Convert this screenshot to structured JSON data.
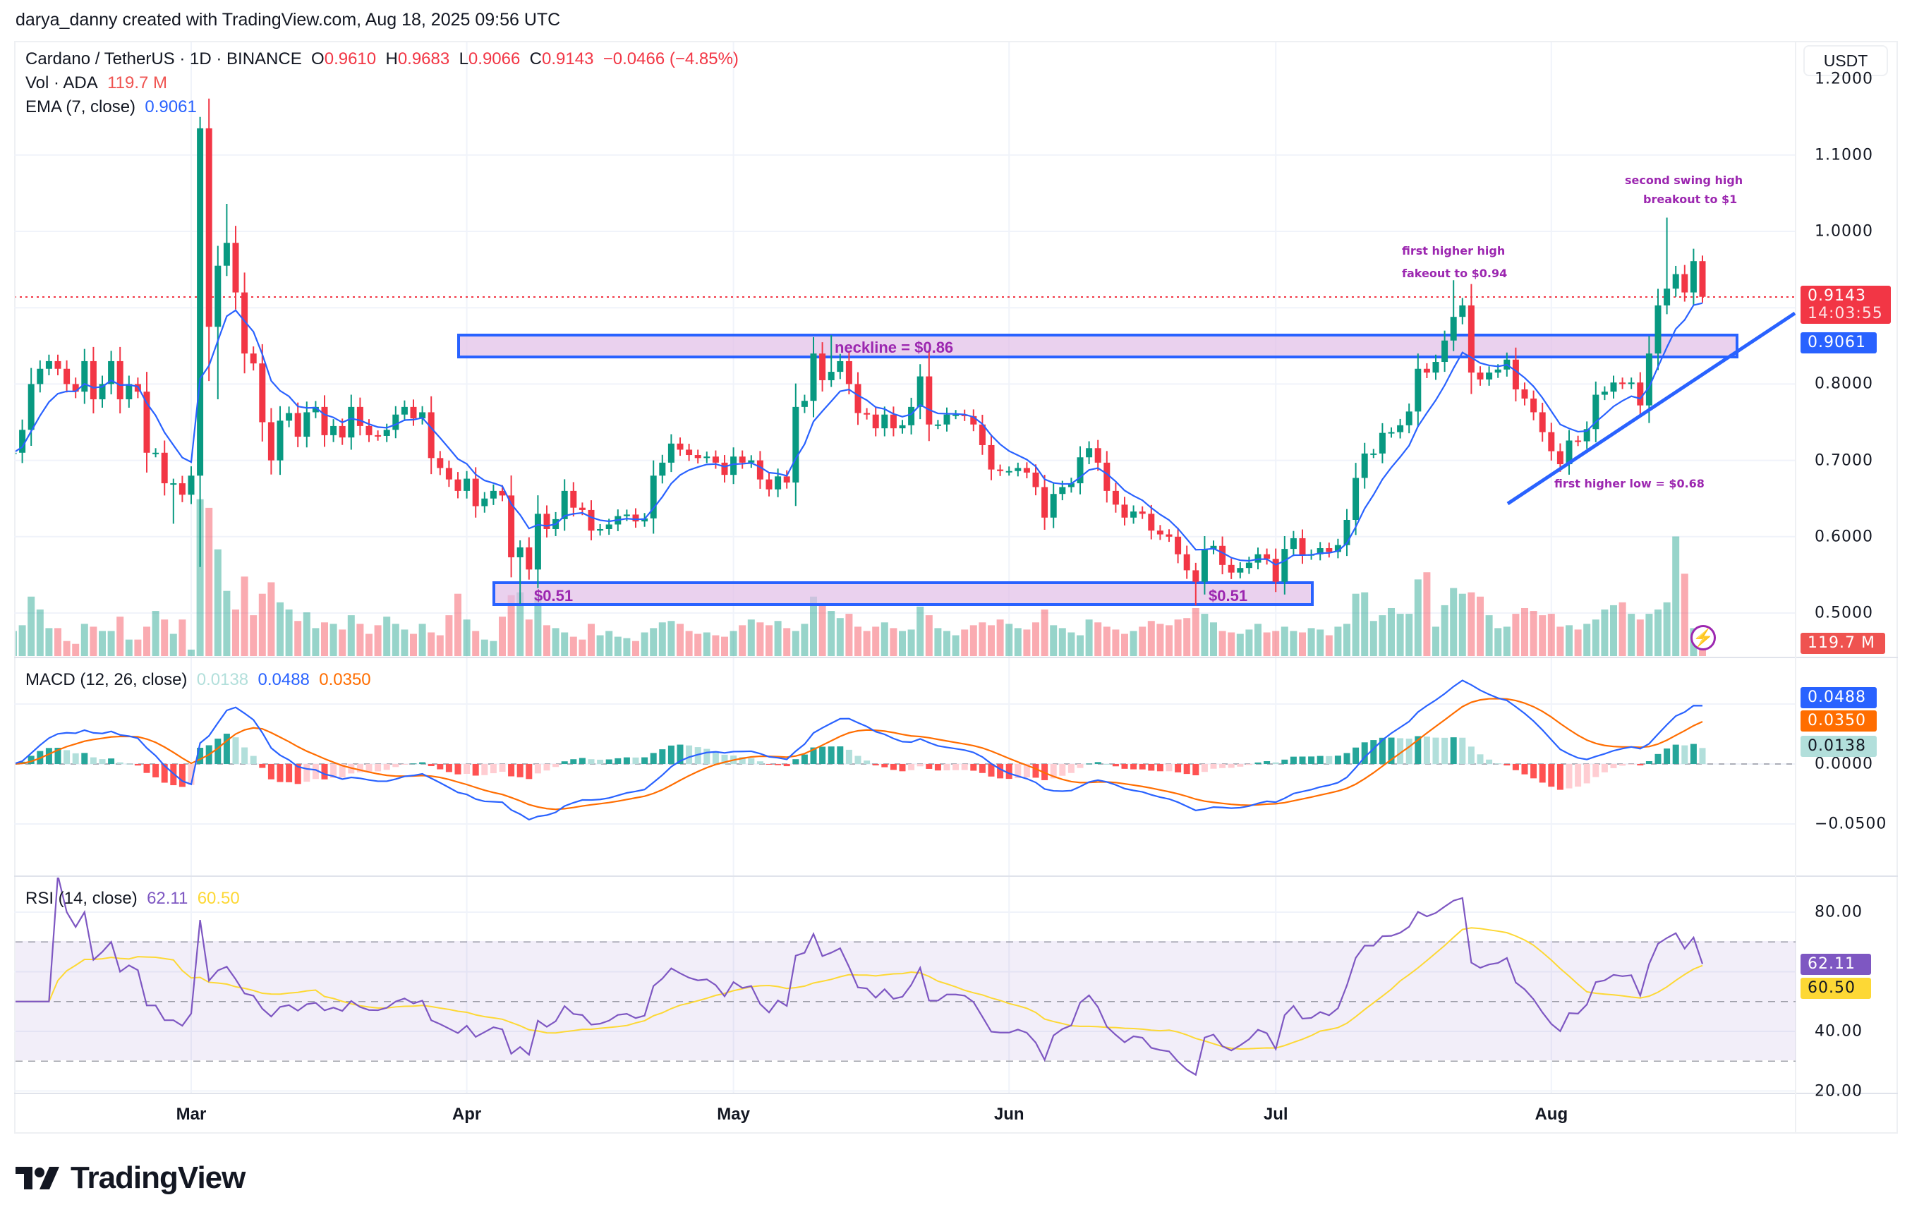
{
  "credit": "darya_danny created with TradingView.com, Aug 18, 2025 09:56 UTC",
  "legend": {
    "symbol": "Cardano / TetherUS · 1D · BINANCE",
    "o_label": "O",
    "o": "0.9610",
    "h_label": "H",
    "h": "0.9683",
    "l_label": "L",
    "l": "0.9066",
    "c_label": "C",
    "c": "0.9143",
    "change": "−0.0466 (−4.85%)",
    "vol_title": "Vol · ADA",
    "vol_value": "119.7 M",
    "ema_title": "EMA (7, close)",
    "ema_value": "0.9061",
    "macd_title": "MACD (12, 26, close)",
    "macd_hist": "0.0138",
    "macd_line": "0.0488",
    "macd_signal": "0.0350",
    "rsi_title": "RSI (14, close)",
    "rsi_value": "62.11",
    "rsi_ma": "60.50"
  },
  "currency_button": "USDT",
  "axis_tags": {
    "last_price": "0.9143",
    "countdown": "14:03:55",
    "ema": "0.9061",
    "volume": "119.7 M",
    "macd_line": "0.0488",
    "macd_signal": "0.0350",
    "macd_hist": "0.0138",
    "rsi": "62.11",
    "rsi_ma": "60.50"
  },
  "annotations": {
    "neckline": "neckline = $0.86",
    "support_left": "$0.51",
    "support_right": "$0.51",
    "first_higher_high_1": "first higher high",
    "first_higher_high_2": "fakeout to $0.94",
    "second_swing_high_1": "second swing high",
    "second_swing_high_2": "breakout to $1",
    "first_higher_low": "first higher low = $0.68"
  },
  "logo_text": "TradingView",
  "colors": {
    "up": "#089981",
    "down": "#f23645",
    "ema": "#2962ff",
    "macd": "#2962ff",
    "signal": "#ff6d00",
    "rsi": "#7e57c2",
    "rsi_ma": "#fdd835",
    "annotation": "#9c27b0",
    "zone_fill": "#e1bee7",
    "zone_border": "#2962ff"
  },
  "chart_data": {
    "type": "candlestick",
    "symbol": "ADAUSDT",
    "interval": "1D",
    "first_date": "2025-02-09",
    "last_date": "2025-08-18",
    "time_labels": [
      "Mar",
      "Apr",
      "May",
      "Jun",
      "Jul",
      "Aug"
    ],
    "price_ticks": [
      "1.2000",
      "1.1000",
      "1.0000",
      "0.8000",
      "0.7000",
      "0.6000",
      "0.5000"
    ],
    "macd_ticks": [
      "0.0000",
      "−0.0500"
    ],
    "rsi_ticks": [
      "80.00",
      "40.00",
      "20.00"
    ],
    "rsi_bands": [
      70,
      50,
      30
    ],
    "close": [
      0.71,
      0.74,
      0.8,
      0.82,
      0.83,
      0.82,
      0.8,
      0.79,
      0.83,
      0.78,
      0.8,
      0.83,
      0.78,
      0.8,
      0.79,
      0.71,
      0.71,
      0.67,
      0.67,
      0.655,
      0.68,
      1.135,
      0.875,
      0.955,
      0.985,
      0.92,
      0.84,
      0.827,
      0.75,
      0.7,
      0.752,
      0.762,
      0.731,
      0.763,
      0.77,
      0.733,
      0.745,
      0.73,
      0.77,
      0.745,
      0.733,
      0.732,
      0.74,
      0.76,
      0.77,
      0.755,
      0.763,
      0.703,
      0.69,
      0.675,
      0.66,
      0.676,
      0.64,
      0.65,
      0.66,
      0.654,
      0.573,
      0.586,
      0.557,
      0.63,
      0.61,
      0.623,
      0.66,
      0.638,
      0.635,
      0.608,
      0.61,
      0.616,
      0.627,
      0.629,
      0.62,
      0.624,
      0.68,
      0.697,
      0.722,
      0.714,
      0.707,
      0.703,
      0.705,
      0.697,
      0.681,
      0.705,
      0.697,
      0.7,
      0.675,
      0.662,
      0.679,
      0.671,
      0.77,
      0.778,
      0.84,
      0.805,
      0.816,
      0.83,
      0.8,
      0.762,
      0.76,
      0.742,
      0.76,
      0.742,
      0.746,
      0.77,
      0.81,
      0.747,
      0.747,
      0.76,
      0.76,
      0.758,
      0.747,
      0.72,
      0.688,
      0.686,
      0.686,
      0.69,
      0.684,
      0.665,
      0.625,
      0.656,
      0.665,
      0.67,
      0.704,
      0.716,
      0.697,
      0.66,
      0.642,
      0.625,
      0.633,
      0.63,
      0.608,
      0.603,
      0.6,
      0.577,
      0.556,
      0.541,
      0.584,
      0.588,
      0.563,
      0.553,
      0.559,
      0.566,
      0.577,
      0.571,
      0.541,
      0.584,
      0.598,
      0.576,
      0.577,
      0.585,
      0.58,
      0.589,
      0.622,
      0.677,
      0.709,
      0.709,
      0.736,
      0.737,
      0.746,
      0.764,
      0.82,
      0.815,
      0.829,
      0.857,
      0.888,
      0.903,
      0.815,
      0.806,
      0.815,
      0.819,
      0.832,
      0.793,
      0.781,
      0.763,
      0.737,
      0.712,
      0.695,
      0.726,
      0.725,
      0.741,
      0.786,
      0.79,
      0.802,
      0.8,
      0.802,
      0.772,
      0.84,
      0.903,
      0.925,
      0.944,
      0.92,
      0.961,
      0.9143
    ],
    "last_open": 0.961,
    "highs": {
      "2025-03-02": 1.15,
      "2025-03-03": 1.174,
      "2025-03-05": 1.036,
      "2025-05-12": 0.864,
      "2025-05-23": 0.845,
      "2025-07-21": 0.936,
      "2025-08-14": 1.018,
      "2025-08-18": 0.9683
    },
    "lows": {
      "2025-02-27": 0.617,
      "2025-03-04": 0.78,
      "2025-04-07": 0.512,
      "2025-06-22": 0.51,
      "2025-08-02": 0.685,
      "2025-08-18": 0.9066
    },
    "volume_unit": "M",
    "volume": [
      180,
      220,
      420,
      330,
      200,
      200,
      110,
      90,
      230,
      210,
      180,
      180,
      280,
      120,
      120,
      210,
      320,
      260,
      160,
      260,
      50,
      1100,
      1040,
      750,
      460,
      330,
      560,
      290,
      440,
      520,
      380,
      330,
      250,
      310,
      200,
      240,
      230,
      190,
      290,
      230,
      160,
      220,
      280,
      230,
      190,
      160,
      230,
      170,
      150,
      290,
      440,
      260,
      180,
      120,
      110,
      280,
      430,
      450,
      260,
      420,
      220,
      200,
      170,
      140,
      120,
      230,
      150,
      180,
      140,
      130,
      110,
      170,
      200,
      240,
      250,
      230,
      180,
      160,
      170,
      150,
      140,
      180,
      220,
      260,
      240,
      220,
      250,
      200,
      180,
      230,
      420,
      360,
      320,
      270,
      300,
      210,
      180,
      210,
      240,
      200,
      180,
      190,
      350,
      290,
      200,
      180,
      150,
      190,
      220,
      240,
      220,
      260,
      230,
      200,
      190,
      240,
      330,
      220,
      200,
      170,
      150,
      260,
      240,
      210,
      190,
      160,
      180,
      210,
      250,
      230,
      220,
      260,
      270,
      340,
      300,
      240,
      180,
      170,
      160,
      190,
      230,
      170,
      180,
      210,
      180,
      170,
      200,
      190,
      150,
      210,
      230,
      440,
      450,
      250,
      290,
      340,
      300,
      300,
      540,
      590,
      210,
      360,
      480,
      440,
      450,
      420,
      290,
      200,
      210,
      300,
      340,
      320,
      290,
      300,
      210,
      220,
      190,
      230,
      260,
      330,
      360,
      380,
      300,
      260,
      300,
      330,
      380,
      840,
      580,
      200,
      119.7
    ],
    "indicators": {
      "ema_period": 7,
      "macd": [
        12,
        26,
        9
      ],
      "rsi_period": 14,
      "rsi_ma_period": 14
    }
  }
}
